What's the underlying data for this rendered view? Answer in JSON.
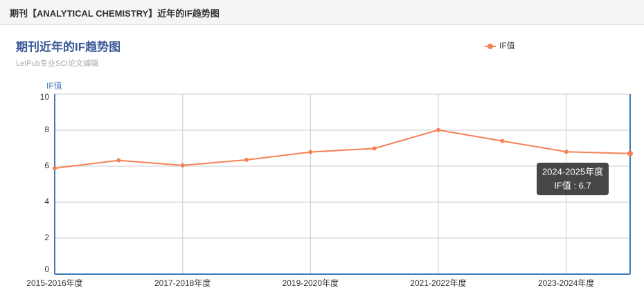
{
  "header": {
    "title": "期刊【ANALYTICAL CHEMISTRY】近年的IF趋势图"
  },
  "chart_data": {
    "type": "line",
    "title": "期刊近年的IF趋势图",
    "subtitle": "LetPub专业SCI论文编辑",
    "y_label": "IF值",
    "categories": [
      "2015-2016年度",
      null,
      "2017-2018年度",
      null,
      "2019-2020年度",
      null,
      "2021-2022年度",
      null,
      "2023-2024年度",
      null
    ],
    "series": [
      {
        "name": "IF值",
        "color": "#f58153",
        "values": [
          5.886,
          6.32,
          6.042,
          6.35,
          6.785,
          6.986,
          8.008,
          7.4,
          6.8,
          6.7
        ]
      }
    ],
    "ylim": [
      0,
      10
    ],
    "yticks": [
      0,
      2,
      4,
      6,
      8,
      10
    ],
    "grid": true,
    "legend": "top-right",
    "tooltip": {
      "title": "2024-2025年度",
      "text": "IF值 : 6.7"
    }
  }
}
